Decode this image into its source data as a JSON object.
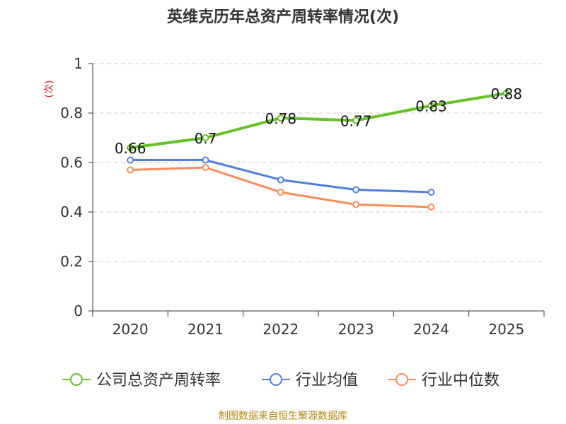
{
  "colors": {
    "series": [
      "#66c227",
      "#4f80e0",
      "#fb8c5a"
    ],
    "grid": "#cccccc",
    "axis": "#333333",
    "unit": "#e02020",
    "source": "#b8860b"
  },
  "chart_data": {
    "type": "line",
    "title": "英维克历年总资产周转率情况(次)",
    "ylabel": "(次)",
    "xlabel": "",
    "categories": [
      "2020",
      "2021",
      "2022",
      "2023",
      "2024",
      "2025"
    ],
    "ylim": [
      0,
      1
    ],
    "yticks": [
      0,
      0.2,
      0.4,
      0.6,
      0.8,
      1
    ],
    "ytick_labels": [
      "0",
      "0.2",
      "0.4",
      "0.6",
      "0.8",
      "1"
    ],
    "grid": true,
    "legend_position": "bottom",
    "series": [
      {
        "name": "公司总资产周转率",
        "values": [
          0.66,
          0.7,
          0.78,
          0.77,
          0.83,
          0.88
        ],
        "labels": [
          "0.66",
          "0.7",
          "0.78",
          "0.77",
          "0.83",
          "0.88"
        ]
      },
      {
        "name": "行业均值",
        "values": [
          0.61,
          0.61,
          0.53,
          0.49,
          0.48,
          null
        ]
      },
      {
        "name": "行业中位数",
        "values": [
          0.57,
          0.58,
          0.48,
          0.43,
          0.42,
          null
        ]
      }
    ]
  },
  "source": "制图数据来自恒生聚源数据库"
}
